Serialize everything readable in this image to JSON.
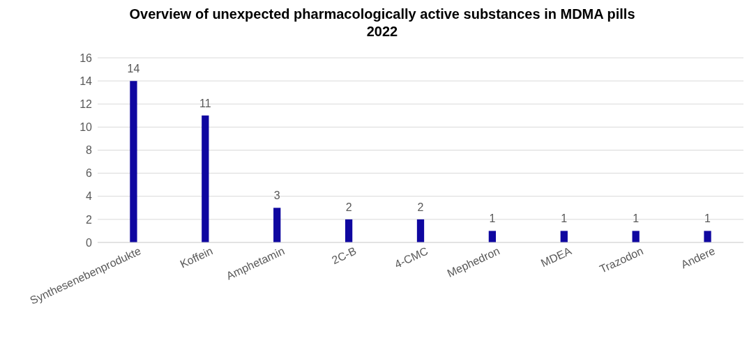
{
  "chart_data": {
    "type": "bar",
    "title": "Overview of unexpected pharmacologically active substances in MDMA pills 2022",
    "categories": [
      "Synthesenebenprodukte",
      "Koffein",
      "Amphetamin",
      "2C-B",
      "4-CMC",
      "Mephedron",
      "MDEA",
      "Trazodon",
      "Andere"
    ],
    "values": [
      14,
      11,
      3,
      2,
      2,
      1,
      1,
      1,
      1
    ],
    "color": "#0f07a0",
    "ylim": [
      0,
      16
    ],
    "yticks": [
      0,
      2,
      4,
      6,
      8,
      10,
      12,
      14,
      16
    ],
    "grid": "y",
    "data_labels": true
  }
}
